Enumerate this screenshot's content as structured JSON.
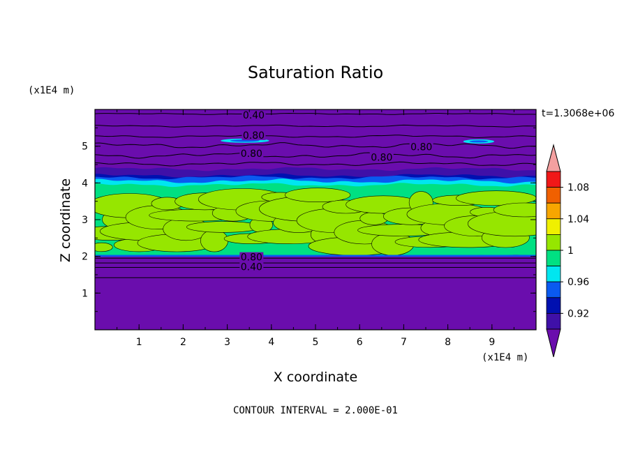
{
  "chart_data": {
    "type": "heatmap",
    "title": "Saturation Ratio",
    "xlabel": "X coordinate",
    "ylabel": "Z coordinate",
    "x_unit": "(x1E4 m)",
    "y_unit": "(x1E4 m)",
    "time_label": "t=1.3068e+06",
    "footer": "CONTOUR INTERVAL = 2.000E-01",
    "xlim": [
      0,
      10
    ],
    "ylim": [
      0,
      6
    ],
    "xticks": [
      "1",
      "2",
      "3",
      "4",
      "5",
      "6",
      "7",
      "8",
      "9"
    ],
    "yticks": [
      "1",
      "2",
      "3",
      "4",
      "5"
    ],
    "colorbar": {
      "labels": [
        "1.08",
        "1.04",
        "1",
        "0.96",
        "0.92"
      ],
      "levels": [
        0.92,
        0.94,
        0.96,
        0.98,
        1.0,
        1.02,
        1.04,
        1.06,
        1.08
      ],
      "colors": [
        "#6a0dad",
        "#3f10a8",
        "#0010b0",
        "#0a5af0",
        "#00e6f0",
        "#00e082",
        "#96e600",
        "#f0f000",
        "#f7a600",
        "#f06000",
        "#f01818",
        "#f4a0a0"
      ]
    },
    "contour_labels": [
      {
        "text": "0.40",
        "x": 3.6,
        "z": 5.85
      },
      {
        "text": "0.80",
        "x": 3.6,
        "z": 5.3
      },
      {
        "text": "0.80",
        "x": 3.55,
        "z": 4.8
      },
      {
        "text": "0.80",
        "x": 7.4,
        "z": 4.98
      },
      {
        "text": "0.80",
        "x": 6.5,
        "z": 4.7
      },
      {
        "text": "0.80",
        "x": 3.55,
        "z": 1.98
      },
      {
        "text": "0.40",
        "x": 3.55,
        "z": 1.72
      }
    ]
  }
}
